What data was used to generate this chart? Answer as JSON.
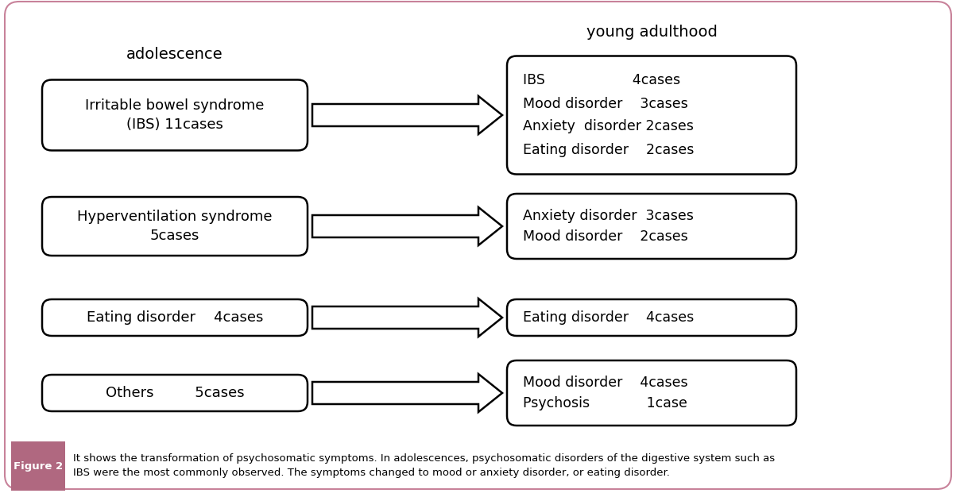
{
  "background_color": "#ffffff",
  "border_color": "#c8829a",
  "left_label": "adolescence",
  "right_label": "young adulthood",
  "left_boxes": [
    {
      "text": "Irritable bowel syndrome\n(IBS) 11cases"
    },
    {
      "text": "Hyperventilation syndrome\n5cases"
    },
    {
      "text": "Eating disorder    4cases"
    },
    {
      "text": "Others         5cases"
    }
  ],
  "right_boxes": [
    {
      "lines": [
        "IBS                    4cases",
        "Mood disorder    3cases",
        "Anxiety  disorder 2cases",
        "Eating disorder    2cases"
      ]
    },
    {
      "lines": [
        "Anxiety disorder  3cases",
        "Mood disorder    2cases"
      ]
    },
    {
      "lines": [
        "Eating disorder    4cases"
      ]
    },
    {
      "lines": [
        "Mood disorder    4cases",
        "Psychosis             1case"
      ]
    }
  ],
  "caption_label": "Figure 2",
  "caption_label_bg": "#b06880",
  "caption_text": "It shows the transformation of psychosomatic symptoms. In adolescences, psychosomatic disorders of the digestive system such as\nIBS were the most commonly observed. The symptoms changed to mood or anxiety disorder, or eating disorder.",
  "text_color": "#000000",
  "font_size": 13,
  "caption_font_size": 10
}
